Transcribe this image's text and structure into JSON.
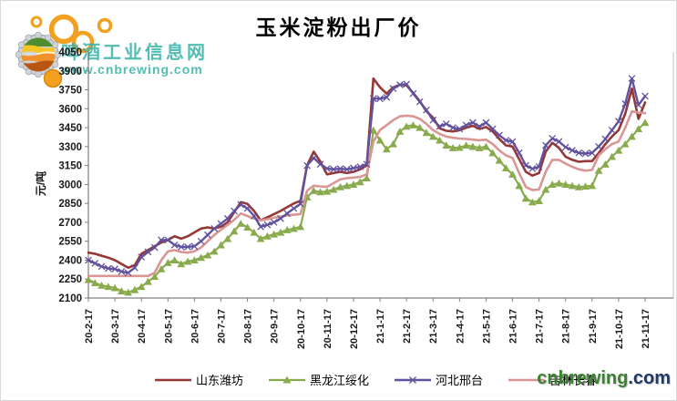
{
  "title": "玉米淀粉出厂价",
  "watermark": {
    "line1": "啤酒工业信息网",
    "line2": "www.cnbrewing.com"
  },
  "footer_logo": {
    "name": "cnbrewing",
    "tld": ".com"
  },
  "colors": {
    "watermark_teal": "#3CB5A9",
    "brand_green": "#3D7F35",
    "brand_navy": "#1F3864",
    "axis_gray": "#808080",
    "tick_text": "#1a1a1a",
    "series_red": "#953734",
    "series_green": "#8AAB4D",
    "series_purple": "#61519E",
    "series_pink": "#D99694"
  },
  "y_axis": {
    "label": "元/吨",
    "tick_labels": [
      "2100",
      "2250",
      "2400",
      "2550",
      "2700",
      "2850",
      "3000",
      "3150",
      "3300",
      "3450",
      "3600",
      "3750",
      "3900",
      "4050"
    ]
  },
  "chart_data": {
    "type": "line",
    "title": "玉米淀粉出厂价",
    "xlabel": "",
    "ylabel": "元/吨",
    "ylim": [
      2100,
      4050
    ],
    "ytick_step": 150,
    "grid": false,
    "legend_position": "bottom",
    "points_per_month": 4,
    "x_tick_labels": [
      "20-2-17",
      "20-3-17",
      "20-4-17",
      "20-5-17",
      "20-6-17",
      "20-7-17",
      "20-8-17",
      "20-9-17",
      "20-10-17",
      "20-11-17",
      "20-12-17",
      "21-1-17",
      "21-2-17",
      "21-3-17",
      "21-4-17",
      "21-5-17",
      "21-6-17",
      "21-7-17",
      "21-8-17",
      "21-9-17",
      "21-10-17",
      "21-11-17"
    ],
    "series": [
      {
        "name": "山东潍坊",
        "color": "#953734",
        "marker": "none",
        "width": 2.6,
        "values": [
          2460,
          2450,
          2435,
          2420,
          2400,
          2370,
          2340,
          2360,
          2450,
          2480,
          2510,
          2540,
          2560,
          2590,
          2570,
          2590,
          2620,
          2650,
          2660,
          2650,
          2665,
          2700,
          2780,
          2860,
          2845,
          2790,
          2715,
          2740,
          2765,
          2790,
          2820,
          2850,
          2870,
          3150,
          3260,
          3180,
          3080,
          3090,
          3100,
          3090,
          3100,
          3120,
          3150,
          3840,
          3770,
          3720,
          3770,
          3790,
          3785,
          3725,
          3660,
          3580,
          3530,
          3445,
          3425,
          3420,
          3430,
          3450,
          3465,
          3440,
          3455,
          3420,
          3360,
          3310,
          3300,
          3200,
          3100,
          3070,
          3090,
          3260,
          3330,
          3290,
          3220,
          3195,
          3180,
          3185,
          3185,
          3250,
          3320,
          3380,
          3430,
          3560,
          3760,
          3520,
          3650
        ]
      },
      {
        "name": "黑龙江绥化",
        "color": "#8AAB4D",
        "marker": "triangle",
        "width": 2.2,
        "values": [
          2245,
          2220,
          2200,
          2190,
          2180,
          2155,
          2145,
          2165,
          2190,
          2230,
          2270,
          2330,
          2380,
          2400,
          2370,
          2390,
          2400,
          2420,
          2440,
          2470,
          2520,
          2570,
          2630,
          2690,
          2660,
          2620,
          2570,
          2590,
          2605,
          2620,
          2640,
          2650,
          2665,
          2900,
          2950,
          2940,
          2945,
          2960,
          2980,
          2990,
          3000,
          3020,
          3050,
          3430,
          3350,
          3280,
          3320,
          3420,
          3460,
          3470,
          3450,
          3410,
          3380,
          3350,
          3310,
          3290,
          3292,
          3310,
          3300,
          3290,
          3300,
          3250,
          3190,
          3130,
          3080,
          2990,
          2890,
          2860,
          2870,
          2960,
          3000,
          3010,
          3000,
          2990,
          2980,
          2985,
          2990,
          3110,
          3160,
          3220,
          3270,
          3320,
          3380,
          3440,
          3490
        ]
      },
      {
        "name": "河北邢台",
        "color": "#61519E",
        "marker": "x",
        "width": 2.4,
        "values": [
          2400,
          2375,
          2350,
          2335,
          2330,
          2310,
          2300,
          2340,
          2425,
          2465,
          2500,
          2560,
          2560,
          2520,
          2505,
          2505,
          2510,
          2550,
          2600,
          2650,
          2690,
          2730,
          2790,
          2840,
          2810,
          2750,
          2665,
          2680,
          2700,
          2730,
          2770,
          2810,
          2846,
          3150,
          3210,
          3160,
          3126,
          3120,
          3125,
          3120,
          3130,
          3140,
          3160,
          3680,
          3680,
          3690,
          3760,
          3790,
          3795,
          3720,
          3655,
          3590,
          3510,
          3460,
          3480,
          3450,
          3440,
          3470,
          3490,
          3460,
          3490,
          3440,
          3390,
          3350,
          3340,
          3250,
          3150,
          3125,
          3140,
          3310,
          3365,
          3340,
          3295,
          3270,
          3250,
          3245,
          3250,
          3300,
          3360,
          3430,
          3500,
          3640,
          3840,
          3630,
          3700
        ]
      },
      {
        "name": "吉林长春",
        "color": "#D99694",
        "marker": "none",
        "width": 2.6,
        "values": [
          2275,
          2275,
          2275,
          2275,
          2275,
          2275,
          2275,
          2275,
          2275,
          2275,
          2300,
          2400,
          2470,
          2480,
          2465,
          2460,
          2470,
          2500,
          2550,
          2600,
          2640,
          2680,
          2720,
          2770,
          2750,
          2730,
          2715,
          2725,
          2736,
          2745,
          2755,
          2760,
          2765,
          2950,
          2990,
          2985,
          2981,
          3010,
          3040,
          3050,
          3055,
          3060,
          3080,
          3340,
          3430,
          3470,
          3510,
          3540,
          3545,
          3540,
          3520,
          3480,
          3430,
          3400,
          3380,
          3370,
          3364,
          3360,
          3355,
          3350,
          3355,
          3320,
          3270,
          3230,
          3210,
          3090,
          2980,
          2955,
          2960,
          3100,
          3195,
          3195,
          3165,
          3140,
          3120,
          3110,
          3115,
          3230,
          3280,
          3320,
          3340,
          3450,
          3580,
          3570,
          3565
        ]
      }
    ]
  }
}
